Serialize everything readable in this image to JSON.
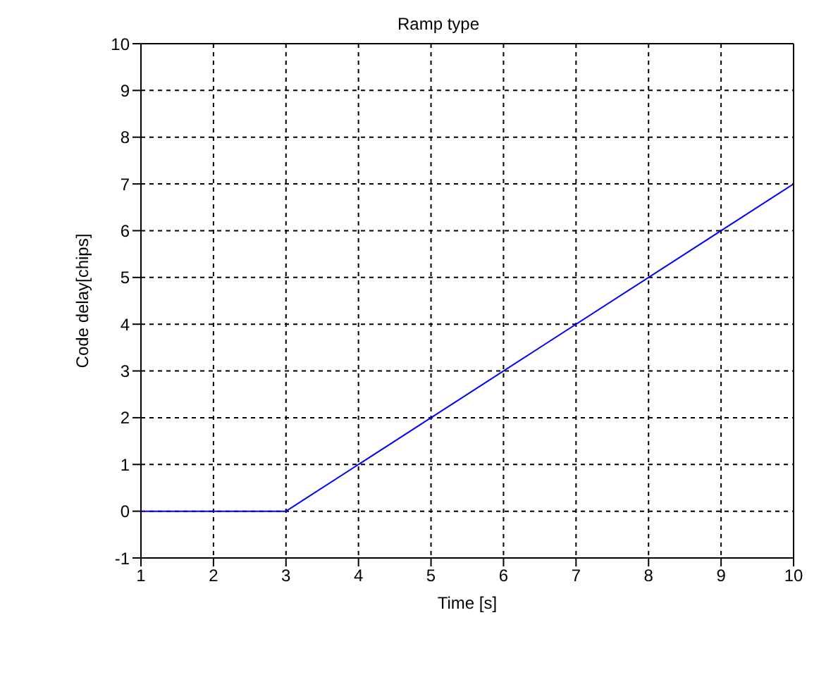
{
  "chart_data": {
    "type": "line",
    "title": "Ramp type",
    "xlabel": "Time [s]",
    "ylabel": "Code delay[chips]",
    "x": [
      1,
      3,
      10
    ],
    "series": [
      {
        "color": "#0000ff",
        "values": [
          0,
          0,
          7
        ]
      }
    ],
    "xlim": [
      1,
      10
    ],
    "xticks": [
      1,
      2,
      3,
      4,
      5,
      6,
      7,
      8,
      9,
      10
    ],
    "ylim": [
      -1,
      10
    ],
    "yticks": [
      -1,
      0,
      1,
      2,
      3,
      4,
      5,
      6,
      7,
      8,
      9,
      10
    ],
    "grid": true,
    "marker": "none",
    "line_style": "solid",
    "legend": false
  }
}
